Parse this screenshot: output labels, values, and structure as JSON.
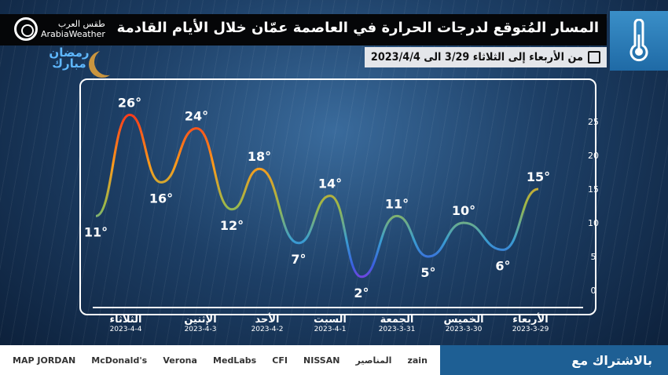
{
  "header": {
    "title": "المسار المُتوقع لدرجات الحرارة في العاصمة عمّان خلال الأيام القادمة",
    "subtitle": "من الأربعاء إلى الثلاثاء 3/29 الى 2023/4/4",
    "brand_ar": "طقس العرب",
    "brand_en": "ArabiaWeather",
    "ramadan": "رمضان مبارك"
  },
  "chart_data": {
    "type": "line",
    "title": "المسار المُتوقع لدرجات الحرارة",
    "ylim": [
      0,
      25
    ],
    "yticks": [
      "0",
      "5",
      "10",
      "15",
      "20",
      "25"
    ],
    "points": [
      {
        "t": 15,
        "label": "15°"
      },
      {
        "t": 6,
        "label": "6°"
      },
      {
        "t": 10,
        "label": "10°"
      },
      {
        "t": 5,
        "label": "5°"
      },
      {
        "t": 11,
        "label": "11°"
      },
      {
        "t": 2,
        "label": "2°"
      },
      {
        "t": 14,
        "label": "14°"
      },
      {
        "t": 7,
        "label": "7°"
      },
      {
        "t": 18,
        "label": "18°"
      },
      {
        "t": 12,
        "label": "12°"
      },
      {
        "t": 24,
        "label": "24°"
      },
      {
        "t": 16,
        "label": "16°"
      },
      {
        "t": 26,
        "label": "26°"
      },
      {
        "t": 11,
        "label": "11°"
      }
    ],
    "days": [
      {
        "name": "الأربعاء",
        "date": "2023-3-29"
      },
      {
        "name": "الخميس",
        "date": "2023-3-30"
      },
      {
        "name": "الجمعة",
        "date": "2023-3-31"
      },
      {
        "name": "السبت",
        "date": "2023-4-1"
      },
      {
        "name": "الأحد",
        "date": "2023-4-2"
      },
      {
        "name": "الإثنين",
        "date": "2023-4-3"
      },
      {
        "name": "الثلاثاء",
        "date": "2023-4-4"
      }
    ]
  },
  "footer": {
    "sponsor_label": "بالاشتراك مع",
    "sponsors": [
      "MAP JORDAN",
      "McDonald's",
      "Verona",
      "MedLabs",
      "CFI",
      "NISSAN",
      "المناصير",
      "zain"
    ]
  }
}
